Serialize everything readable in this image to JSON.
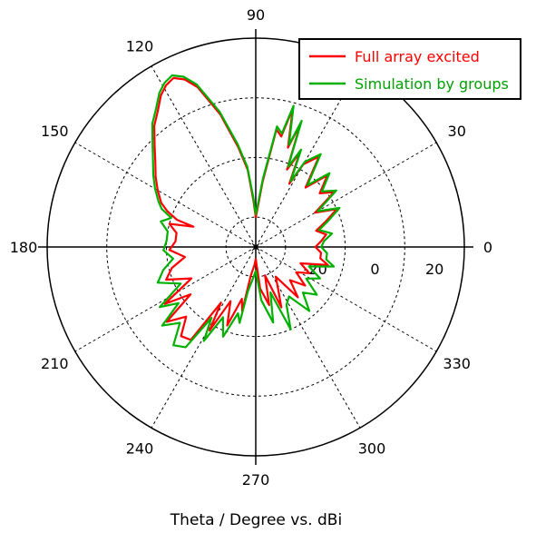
{
  "chart_data": {
    "type": "polar-line",
    "xlabel": "Theta / Degree vs. dBi",
    "angle_unit": "degree",
    "angle_ticks": [
      0,
      30,
      60,
      90,
      120,
      150,
      180,
      210,
      240,
      270,
      300,
      330
    ],
    "angle_tick_labels": [
      "0",
      "30",
      "",
      "90",
      "120",
      "150",
      "180",
      "210",
      "240",
      "270",
      "300",
      "330"
    ],
    "radial_ticks": [
      -20,
      0,
      20
    ],
    "rlim": [
      -40,
      30
    ],
    "grid": true,
    "legend_position": "top-right",
    "series": [
      {
        "name": "Full array excited",
        "color": "#ff0000",
        "points": [
          [
            0,
            -20
          ],
          [
            5,
            -18
          ],
          [
            10,
            -16
          ],
          [
            15,
            -19
          ],
          [
            20,
            -15
          ],
          [
            25,
            -10
          ],
          [
            30,
            -17
          ],
          [
            35,
            -8
          ],
          [
            40,
            -12
          ],
          [
            45,
            -6
          ],
          [
            50,
            -14
          ],
          [
            55,
            -3
          ],
          [
            60,
            -8
          ],
          [
            62,
            -16
          ],
          [
            65,
            -5
          ],
          [
            68,
            -12
          ],
          [
            70,
            4
          ],
          [
            72,
            -5
          ],
          [
            75,
            8
          ],
          [
            77,
            -2
          ],
          [
            80,
            0
          ],
          [
            84,
            -18
          ],
          [
            88,
            -28
          ],
          [
            90,
            -30
          ],
          [
            93,
            -24
          ],
          [
            96,
            -14
          ],
          [
            100,
            -6
          ],
          [
            105,
            6
          ],
          [
            110,
            17
          ],
          [
            113,
            21
          ],
          [
            116,
            23
          ],
          [
            119,
            22
          ],
          [
            122,
            20
          ],
          [
            126,
            16
          ],
          [
            130,
            13
          ],
          [
            135,
            8
          ],
          [
            140,
            4
          ],
          [
            145,
            1
          ],
          [
            150,
            -2
          ],
          [
            155,
            -5
          ],
          [
            158,
            -8
          ],
          [
            161,
            -12
          ],
          [
            162,
            -18
          ],
          [
            165,
            -10
          ],
          [
            170,
            -13
          ],
          [
            176,
            -13
          ],
          [
            182,
            -11
          ],
          [
            188,
            -16
          ],
          [
            194,
            -11
          ],
          [
            200,
            -8
          ],
          [
            206,
            -16
          ],
          [
            212,
            -4
          ],
          [
            216,
            -13
          ],
          [
            220,
            -1
          ],
          [
            225,
            -7
          ],
          [
            230,
            -1
          ],
          [
            235,
            -2
          ],
          [
            238,
            -18
          ],
          [
            241,
            -8
          ],
          [
            245,
            -20
          ],
          [
            250,
            -12
          ],
          [
            255,
            -22
          ],
          [
            258,
            -18
          ],
          [
            260,
            -30
          ],
          [
            266,
            -34
          ],
          [
            270,
            -36
          ],
          [
            276,
            -26
          ],
          [
            283,
            -20
          ],
          [
            288,
            -30
          ],
          [
            293,
            -18
          ],
          [
            298,
            -24
          ],
          [
            304,
            -28
          ],
          [
            310,
            -18
          ],
          [
            316,
            -24
          ],
          [
            322,
            -19
          ],
          [
            328,
            -24
          ],
          [
            334,
            -20
          ],
          [
            340,
            -24
          ],
          [
            346,
            -15
          ],
          [
            350,
            -18
          ],
          [
            355,
            -18
          ],
          [
            360,
            -20
          ]
        ]
      },
      {
        "name": "Simulation by groups",
        "color": "#00b000",
        "points": [
          [
            0,
            -18
          ],
          [
            5,
            -17
          ],
          [
            10,
            -14
          ],
          [
            15,
            -18
          ],
          [
            20,
            -14
          ],
          [
            25,
            -9
          ],
          [
            30,
            -16
          ],
          [
            35,
            -7
          ],
          [
            40,
            -11
          ],
          [
            45,
            -5
          ],
          [
            50,
            -13
          ],
          [
            55,
            -2
          ],
          [
            60,
            -7
          ],
          [
            62,
            -15
          ],
          [
            65,
            -4
          ],
          [
            68,
            -11
          ],
          [
            70,
            5
          ],
          [
            72,
            -4
          ],
          [
            75,
            9
          ],
          [
            77,
            -1
          ],
          [
            80,
            1
          ],
          [
            84,
            -17
          ],
          [
            88,
            -27
          ],
          [
            90,
            -29
          ],
          [
            93,
            -23
          ],
          [
            96,
            -13
          ],
          [
            100,
            -5
          ],
          [
            105,
            7
          ],
          [
            110,
            18
          ],
          [
            113,
            22
          ],
          [
            116,
            24
          ],
          [
            119,
            23
          ],
          [
            122,
            21
          ],
          [
            126,
            17
          ],
          [
            130,
            14
          ],
          [
            135,
            9
          ],
          [
            140,
            5
          ],
          [
            145,
            2
          ],
          [
            150,
            -1
          ],
          [
            155,
            -4
          ],
          [
            158,
            -6
          ],
          [
            161,
            -10
          ],
          [
            165,
            -7
          ],
          [
            170,
            -10
          ],
          [
            176,
            -10
          ],
          [
            182,
            -9
          ],
          [
            188,
            -12
          ],
          [
            194,
            -8
          ],
          [
            200,
            -5
          ],
          [
            206,
            -12
          ],
          [
            212,
            -2
          ],
          [
            216,
            -8
          ],
          [
            220,
            1
          ],
          [
            225,
            -4
          ],
          [
            230,
            3
          ],
          [
            235,
            1
          ],
          [
            238,
            -12
          ],
          [
            241,
            -4
          ],
          [
            245,
            -14
          ],
          [
            250,
            -8
          ],
          [
            255,
            -17
          ],
          [
            258,
            -14
          ],
          [
            260,
            -25
          ],
          [
            266,
            -30
          ],
          [
            270,
            -32
          ],
          [
            276,
            -22
          ],
          [
            283,
            -14
          ],
          [
            288,
            -24
          ],
          [
            293,
            -10
          ],
          [
            298,
            -18
          ],
          [
            304,
            -20
          ],
          [
            310,
            -12
          ],
          [
            316,
            -18
          ],
          [
            322,
            -14
          ],
          [
            328,
            -20
          ],
          [
            334,
            -16
          ],
          [
            340,
            -21
          ],
          [
            346,
            -13
          ],
          [
            350,
            -16
          ],
          [
            355,
            -16
          ],
          [
            360,
            -18
          ]
        ]
      }
    ]
  }
}
